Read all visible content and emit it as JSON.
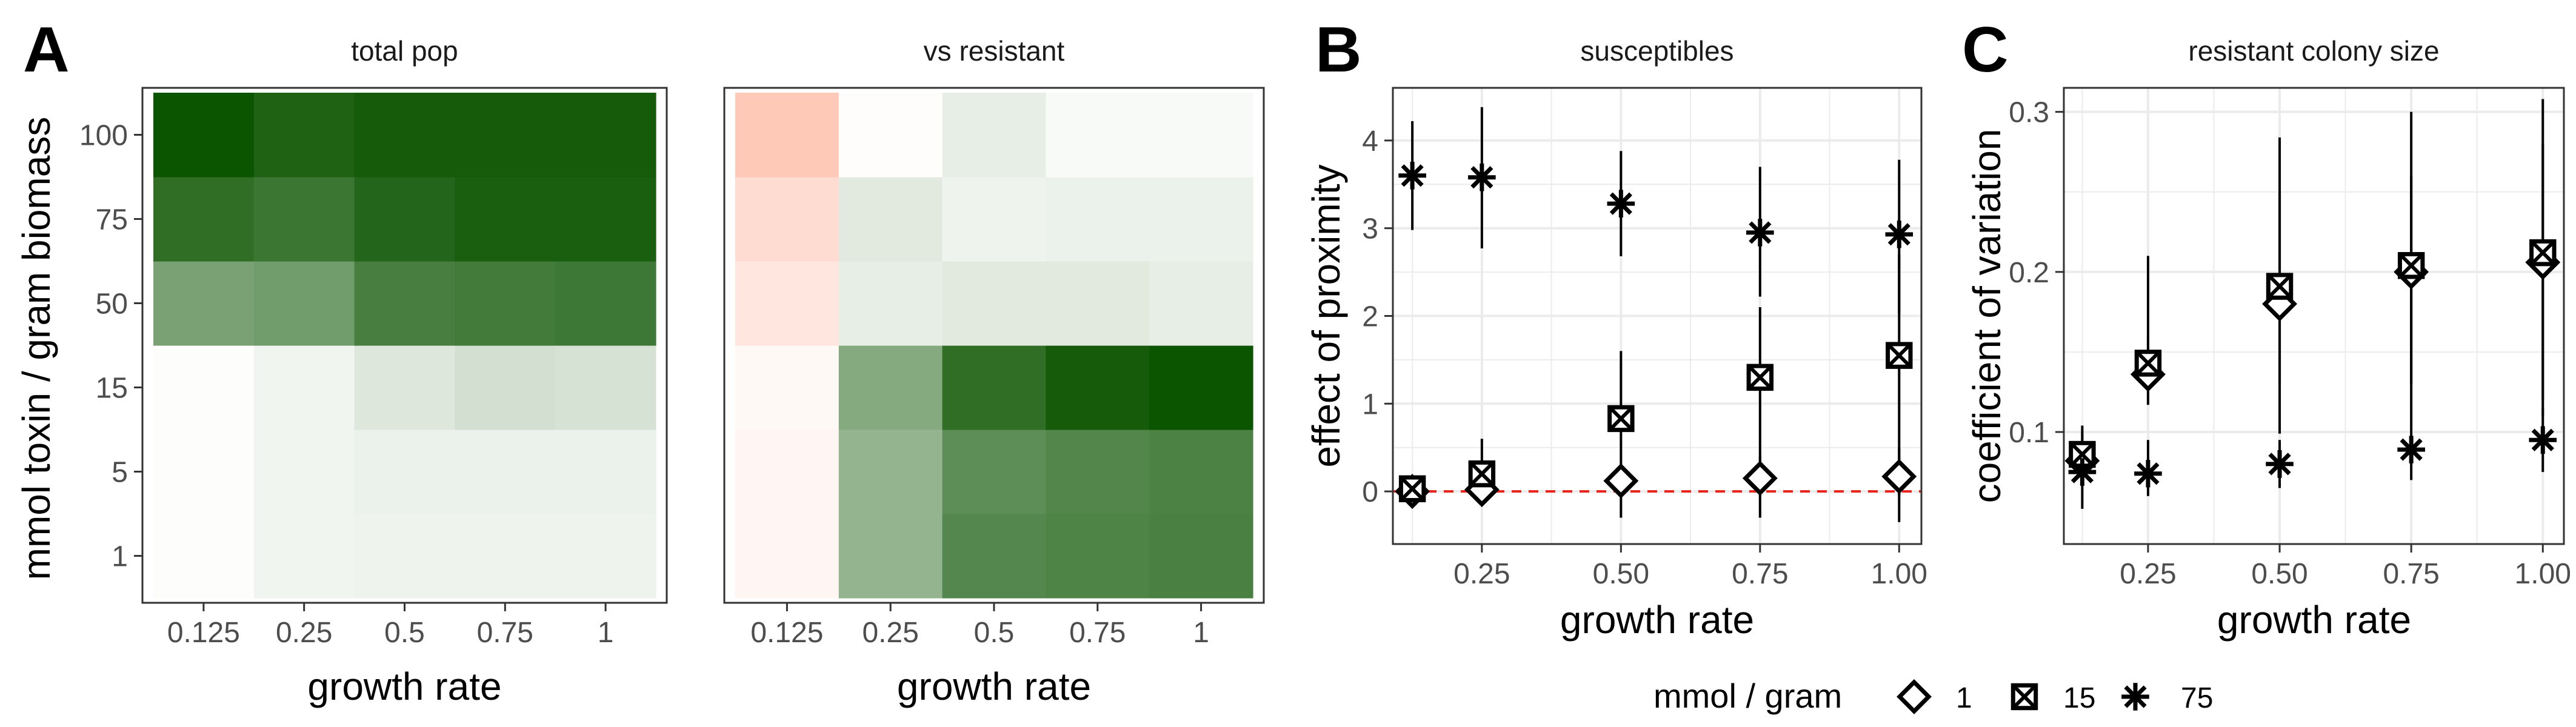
{
  "panel_letters": [
    "A",
    "B",
    "C"
  ],
  "legend": {
    "title": "mmol / gram",
    "entries": [
      {
        "label": "1",
        "shape": "diamond"
      },
      {
        "label": "15",
        "shape": "boxed-x"
      },
      {
        "label": "75",
        "shape": "asterisk"
      }
    ]
  },
  "colors": {
    "green_dark": "#0b5400",
    "red_light": "#ffc9b8",
    "heat_low": "#ffffff",
    "zero_line": "#e8231c",
    "panel_border": "#333333",
    "grid": "#ebebeb",
    "strip_bg": "#ffffff"
  },
  "chart_data": [
    {
      "type": "heatmap",
      "title": "total pop",
      "xlabel": "growth rate",
      "ylabel": "mmol toxin / gram biomass",
      "x": [
        "0.125",
        "0.25",
        "0.5",
        "0.75",
        "1"
      ],
      "y": [
        "1",
        "5",
        "15",
        "50",
        "75",
        "100"
      ],
      "scale": "green",
      "values": [
        [
          0.01,
          0.06,
          0.07,
          0.07,
          0.07
        ],
        [
          0.01,
          0.06,
          0.08,
          0.08,
          0.08
        ],
        [
          0.01,
          0.06,
          0.14,
          0.18,
          0.17
        ],
        [
          0.55,
          0.58,
          0.75,
          0.77,
          0.79
        ],
        [
          0.85,
          0.8,
          0.9,
          0.94,
          0.94
        ],
        [
          1.0,
          0.92,
          0.96,
          0.96,
          0.96
        ]
      ]
    },
    {
      "type": "heatmap",
      "title": "vs resistant",
      "xlabel": "growth rate",
      "ylabel": "",
      "x": [
        "0.125",
        "0.25",
        "0.5",
        "0.75",
        "1"
      ],
      "y": [
        "1",
        "5",
        "15",
        "50",
        "75",
        "100"
      ],
      "scale": "diverging red-white-green",
      "values": [
        [
          -0.08,
          0.44,
          0.7,
          0.72,
          0.74
        ],
        [
          -0.08,
          0.44,
          0.66,
          0.71,
          0.73
        ],
        [
          -0.06,
          0.5,
          0.85,
          0.96,
          1.0
        ],
        [
          -0.22,
          0.1,
          0.12,
          0.12,
          0.1
        ],
        [
          -0.32,
          0.12,
          0.07,
          0.08,
          0.08
        ],
        [
          -0.5,
          -0.02,
          0.1,
          0.03,
          0.03
        ]
      ]
    },
    {
      "type": "scatter",
      "title": "susceptibles",
      "xlabel": "growth rate",
      "ylabel": "effect of proximity",
      "xlim": [
        0.09,
        1.04
      ],
      "ylim": [
        -0.6,
        4.6
      ],
      "xticks": [
        "0.25",
        "0.50",
        "0.75",
        "1.00"
      ],
      "xtick_values": [
        0.25,
        0.5,
        0.75,
        1.0
      ],
      "yticks": [
        "0",
        "1",
        "2",
        "3",
        "4"
      ],
      "ytick_values": [
        0,
        1,
        2,
        3,
        4
      ],
      "reference_line_y": 0,
      "grid": true,
      "series": [
        {
          "name": "1",
          "shape": "diamond",
          "x": [
            0.125,
            0.25,
            0.5,
            0.75,
            1.0
          ],
          "y": [
            0.0,
            0.02,
            0.12,
            0.15,
            0.17
          ],
          "ylow": [
            -0.05,
            -0.05,
            -0.05,
            -0.05,
            -0.05
          ],
          "yhigh": [
            0.05,
            0.1,
            0.3,
            0.4,
            0.5
          ]
        },
        {
          "name": "15",
          "shape": "boxed-x",
          "x": [
            0.125,
            0.25,
            0.5,
            0.75,
            1.0
          ],
          "y": [
            0.03,
            0.2,
            0.83,
            1.3,
            1.55
          ],
          "ylow": [
            -0.05,
            -0.1,
            -0.3,
            -0.3,
            -0.35
          ],
          "yhigh": [
            0.15,
            0.6,
            1.6,
            2.1,
            2.7
          ]
        },
        {
          "name": "75",
          "shape": "asterisk",
          "x": [
            0.125,
            0.25,
            0.5,
            0.75,
            1.0
          ],
          "y": [
            3.6,
            3.58,
            3.28,
            2.95,
            2.93
          ],
          "ylow": [
            2.98,
            2.77,
            2.68,
            2.22,
            2.02
          ],
          "yhigh": [
            4.22,
            4.38,
            3.88,
            3.7,
            3.78
          ]
        }
      ]
    },
    {
      "type": "scatter",
      "title": "resistant colony size",
      "xlabel": "growth rate",
      "ylabel": "coefficient of variation",
      "xlim": [
        0.09,
        1.04
      ],
      "ylim": [
        0.03,
        0.315
      ],
      "xticks": [
        "0.25",
        "0.50",
        "0.75",
        "1.00"
      ],
      "xtick_values": [
        0.25,
        0.5,
        0.75,
        1.0
      ],
      "yticks": [
        "0.1",
        "0.2",
        "0.3"
      ],
      "ytick_values": [
        0.1,
        0.2,
        0.3
      ],
      "grid": true,
      "series": [
        {
          "name": "1",
          "shape": "diamond",
          "x": [
            0.125,
            0.25,
            0.5,
            0.75,
            1.0
          ],
          "y": [
            0.082,
            0.136,
            0.18,
            0.2,
            0.206
          ],
          "ylow": [
            0.072,
            0.117,
            0.099,
            0.11,
            0.11
          ],
          "yhigh": [
            0.095,
            0.16,
            0.284,
            0.3,
            0.308
          ]
        },
        {
          "name": "15",
          "shape": "boxed-x",
          "x": [
            0.125,
            0.25,
            0.5,
            0.75,
            1.0
          ],
          "y": [
            0.086,
            0.143,
            0.191,
            0.204,
            0.212
          ],
          "ylow": [
            0.07,
            0.117,
            0.13,
            0.13,
            0.12
          ],
          "yhigh": [
            0.1,
            0.21,
            0.25,
            0.26,
            0.28
          ]
        },
        {
          "name": "75",
          "shape": "asterisk",
          "x": [
            0.125,
            0.25,
            0.5,
            0.75,
            1.0
          ],
          "y": [
            0.075,
            0.074,
            0.08,
            0.089,
            0.095
          ],
          "ylow": [
            0.052,
            0.06,
            0.065,
            0.07,
            0.075
          ],
          "yhigh": [
            0.104,
            0.095,
            0.095,
            0.11,
            0.115
          ]
        }
      ]
    }
  ]
}
